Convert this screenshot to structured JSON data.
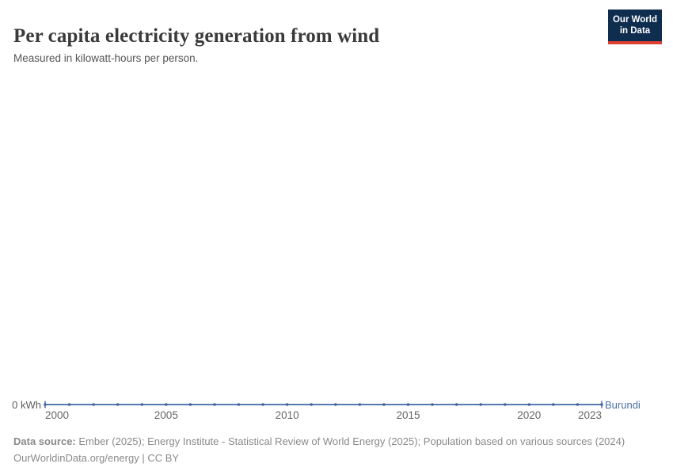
{
  "header": {
    "title": "Per capita electricity generation from wind",
    "subtitle": "Measured in kilowatt-hours per person.",
    "logo": {
      "line1": "Our World",
      "line2": "in Data",
      "bg_color": "#0e2d4f",
      "accent_color": "#dc3e32"
    }
  },
  "chart_data": {
    "type": "line",
    "title": "Per capita electricity generation from wind",
    "ylabel": "kilowatt-hours per person",
    "x": [
      2000,
      2001,
      2002,
      2003,
      2004,
      2005,
      2006,
      2007,
      2008,
      2009,
      2010,
      2011,
      2012,
      2013,
      2014,
      2015,
      2016,
      2017,
      2018,
      2019,
      2020,
      2021,
      2022,
      2023
    ],
    "series": [
      {
        "name": "Burundi",
        "values": [
          0,
          0,
          0,
          0,
          0,
          0,
          0,
          0,
          0,
          0,
          0,
          0,
          0,
          0,
          0,
          0,
          0,
          0,
          0,
          0,
          0,
          0,
          0,
          0
        ]
      }
    ],
    "x_ticks": [
      2000,
      2005,
      2010,
      2015,
      2020,
      2023
    ],
    "y_tick_labels": [
      "0 kWh"
    ],
    "xlim": [
      2000,
      2023
    ],
    "ylim": [
      0,
      0
    ],
    "grid": false,
    "legend": "end-of-line-label",
    "line_color": "#577aab",
    "marker_color": "#46639b",
    "entity_label_color": "#4c6fa5"
  },
  "axis": {
    "zero_label": "0 kWh"
  },
  "footer": {
    "datasource_label": "Data source:",
    "datasource_text": " Ember (2025); Energy Institute - Statistical Review of World Energy (2025); Population based on various sources (2024)",
    "link": "OurWorldinData.org/energy",
    "separator": " | ",
    "license": "CC BY"
  }
}
